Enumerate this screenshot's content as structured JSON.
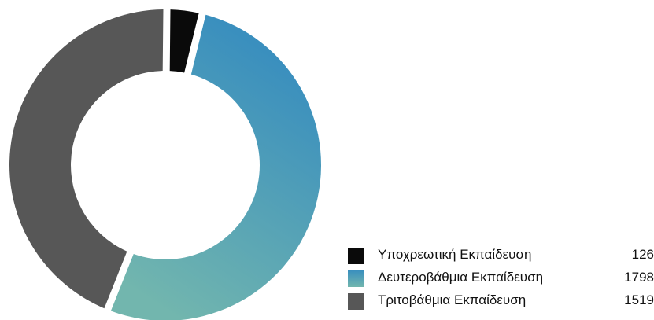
{
  "chart_data": {
    "type": "donut",
    "title": "",
    "series": [
      {
        "name": "Υποχρεωτική Εκπαίδευση",
        "value": 126,
        "color": "#0a0a0a"
      },
      {
        "name": "Δευτεροβάθμια Εκπαίδευση",
        "value": 1798,
        "color": "#3a8fbe",
        "color_end": "#72b6ae"
      },
      {
        "name": "Τριτοβάθμια Εκπαίδευση",
        "value": 1519,
        "color": "#575757"
      }
    ],
    "legend_position": "bottom-right"
  }
}
